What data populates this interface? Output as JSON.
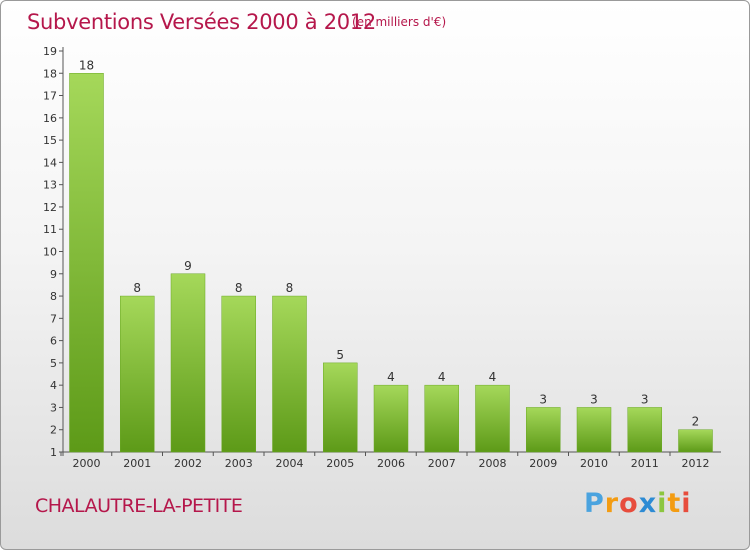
{
  "header": {
    "title": "Subventions Versées 2000 à 2012",
    "subtitle": "(en milliers d'€)"
  },
  "footer": {
    "commune": "CHALAUTRE-LA-PETITE",
    "logo_letters": [
      "P",
      "r",
      "o",
      "x",
      "i",
      "t",
      "i"
    ],
    "logo_colors": [
      "#4aa3df",
      "#f39c12",
      "#e74c3c",
      "#2d8bd4",
      "#8cc63f",
      "#f39c12",
      "#e74c3c"
    ]
  },
  "chart_data": {
    "type": "bar",
    "title": "Subventions Versées 2000 à 2012",
    "subtitle": "(en milliers d'€)",
    "categories": [
      "2000",
      "2001",
      "2002",
      "2003",
      "2004",
      "2005",
      "2006",
      "2007",
      "2008",
      "2009",
      "2010",
      "2011",
      "2012"
    ],
    "values": [
      18,
      8,
      9,
      8,
      8,
      5,
      4,
      4,
      4,
      3,
      3,
      3,
      2
    ],
    "xlabel": "",
    "ylabel": "",
    "ylim": [
      1,
      19
    ],
    "yticks": [
      1,
      2,
      3,
      4,
      5,
      6,
      7,
      8,
      9,
      10,
      11,
      12,
      13,
      14,
      15,
      16,
      17,
      18,
      19
    ],
    "grid": false,
    "bar_color": "#7cbd2c",
    "bar_color_light": "#a5d85a",
    "bar_color_dark": "#5d9a18",
    "title_color": "#b5174b"
  }
}
